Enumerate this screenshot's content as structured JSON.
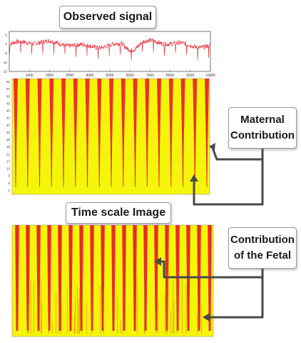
{
  "figure": {
    "observed_title": "Observed signal",
    "timescale_title": "Time scale Image",
    "maternal_label": "Maternal Contribution",
    "fetal_label": "Contribution of the Fetal"
  },
  "signal_plot": {
    "x_ticks": [
      "1000",
      "2000",
      "3000",
      "4000",
      "5000",
      "6000",
      "7000",
      "8000",
      "9000",
      "10000"
    ],
    "y_ticks": [
      "5",
      "0",
      "-5",
      "-10",
      "-15"
    ],
    "xlim": [
      0,
      10000
    ],
    "ylim": [
      -15,
      7
    ],
    "line_color": "#e8202a"
  },
  "scalogram": {
    "y_ticks": [
      "61",
      "57",
      "53",
      "49",
      "45",
      "41",
      "37",
      "33",
      "29",
      "25",
      "21",
      "17",
      "13",
      "9",
      "5",
      "1"
    ],
    "background_color": "#f5f50a",
    "ridge_color": "#e8202a",
    "maternal_ridge_count": 17,
    "fetal_ridge_count": 19
  },
  "colors": {
    "arrow": "#4a4a4a",
    "box_border": "#9a9a9a"
  }
}
